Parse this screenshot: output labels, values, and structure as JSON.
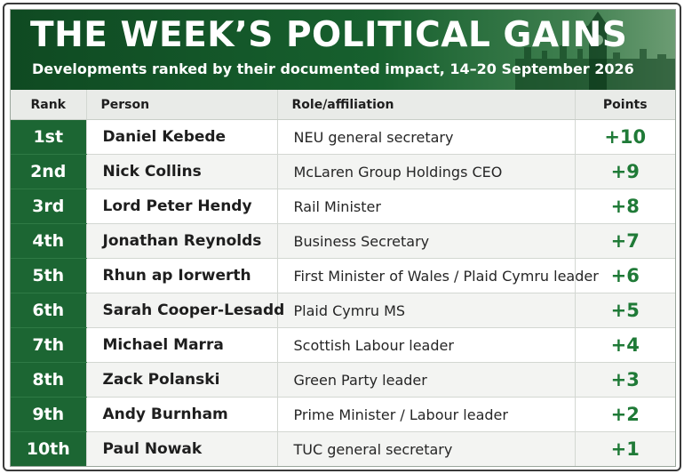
{
  "header": {
    "title": "THE WEEK’S POLITICAL GAINS",
    "subtitle": "Developments ranked by their documented impact, 14–20 September 2026"
  },
  "table": {
    "columns": [
      "Rank",
      "Person",
      "Role/affiliation",
      "Points"
    ],
    "rows": [
      [
        "1st",
        "Daniel Kebede",
        "NEU general secretary",
        "+10"
      ],
      [
        "2nd",
        "Nick Collins",
        "McLaren Group Holdings CEO",
        "+9"
      ],
      [
        "3rd",
        "Lord Peter Hendy",
        "Rail Minister",
        "+8"
      ],
      [
        "4th",
        "Jonathan Reynolds",
        "Business Secretary",
        "+7"
      ],
      [
        "5th",
        "Rhun ap Iorwerth",
        "First Minister of Wales / Plaid Cymru leader",
        "+6"
      ],
      [
        "6th",
        "Sarah Cooper-Lesadd",
        "Plaid Cymru MS",
        "+5"
      ],
      [
        "7th",
        "Michael Marra",
        "Scottish Labour leader",
        "+4"
      ],
      [
        "8th",
        "Zack Polanski",
        "Green Party leader",
        "+3"
      ],
      [
        "9th",
        "Andy Burnham",
        "Prime Minister / Labour leader",
        "+2"
      ],
      [
        "10th",
        "Paul Nowak",
        "TUC general secretary",
        "+1"
      ]
    ]
  }
}
